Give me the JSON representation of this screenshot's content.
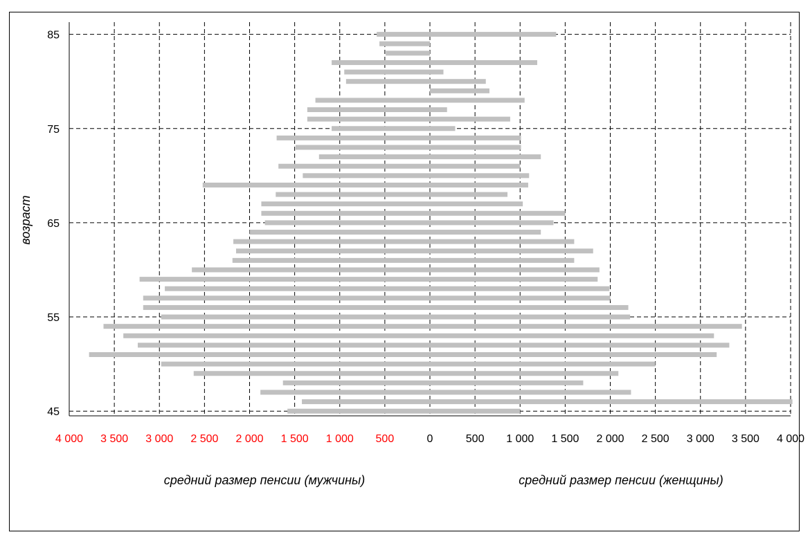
{
  "chart_data": {
    "type": "bar",
    "orientation": "horizontal",
    "y_axis_label": "возраст",
    "x_label_men": "средний размер пенсии (мужчины)",
    "x_label_women": "средний размер пенсии (женщины)",
    "y_ticks": [
      "45",
      "55",
      "65",
      "75",
      "85"
    ],
    "x_ticks_men": [
      "4 000",
      "3 500",
      "3 000",
      "2 500",
      "2 000",
      "1 500",
      "1 000",
      "500"
    ],
    "x_ticks_women": [
      "0",
      "500",
      "1 000",
      "1 500",
      "2 000",
      "2 500",
      "3 000",
      "3 500",
      "4 000"
    ],
    "xlim": [
      -4000,
      4000
    ],
    "ylim": [
      45,
      85
    ],
    "grid": true,
    "colors": {
      "bars": "#c0c0c0",
      "men_ticks": "#ff0000",
      "women_ticks": "#000000",
      "grid": "#000000"
    },
    "ages": [
      45,
      46,
      47,
      48,
      49,
      50,
      51,
      52,
      53,
      54,
      55,
      56,
      57,
      58,
      59,
      60,
      61,
      62,
      63,
      64,
      65,
      66,
      67,
      68,
      69,
      70,
      71,
      72,
      73,
      74,
      75,
      76,
      77,
      78,
      79,
      80,
      81,
      82,
      83,
      84,
      85
    ],
    "series": [
      {
        "name": "мужчины",
        "values": [
          1580,
          1420,
          1880,
          1630,
          2620,
          2980,
          3780,
          3240,
          3400,
          3620,
          2980,
          3180,
          3180,
          2940,
          3220,
          2640,
          2190,
          2150,
          2180,
          2000,
          1830,
          1870,
          1870,
          1710,
          2520,
          1410,
          1680,
          1230,
          1490,
          1700,
          1090,
          1360,
          1360,
          1270,
          0,
          930,
          950,
          1090,
          490,
          560,
          590
        ]
      },
      {
        "name": "женщины",
        "values": [
          1000,
          4020,
          2230,
          1700,
          2090,
          2500,
          3180,
          3320,
          3150,
          3460,
          2220,
          2200,
          2000,
          1990,
          1860,
          1880,
          1600,
          1810,
          1600,
          1230,
          1370,
          1500,
          1030,
          860,
          1090,
          1100,
          1000,
          1230,
          1010,
          1010,
          280,
          890,
          190,
          1050,
          660,
          620,
          150,
          1190,
          0,
          0,
          1400
        ]
      }
    ]
  }
}
